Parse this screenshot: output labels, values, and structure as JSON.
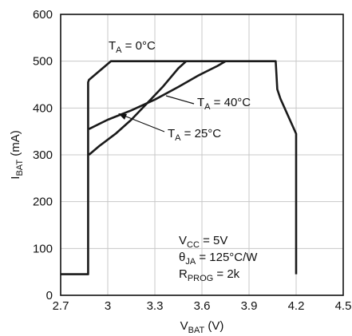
{
  "chart_data": {
    "type": "line",
    "title": "",
    "xlabel": {
      "main": "V",
      "sub": "BAT",
      "unit": " (V)"
    },
    "ylabel": {
      "main": "I",
      "sub": "BAT",
      "unit": " (mA)"
    },
    "xlim": [
      2.7,
      4.5
    ],
    "ylim": [
      0,
      600
    ],
    "x_ticks": [
      "2.7",
      "3",
      "3.3",
      "3.6",
      "3.9",
      "4.2",
      "4.5"
    ],
    "x_tick_values": [
      2.7,
      3.0,
      3.3,
      3.6,
      3.9,
      4.2,
      4.5
    ],
    "y_ticks": [
      "0",
      "100",
      "200",
      "300",
      "400",
      "500",
      "600"
    ],
    "y_tick_values": [
      0,
      100,
      200,
      300,
      400,
      500,
      600
    ],
    "grid": true,
    "curve_labels": [
      {
        "main": "T",
        "sub": "A",
        "rest": " = 0°C",
        "series": 0
      },
      {
        "main": "T",
        "sub": "A",
        "rest": " = 25°C",
        "series": 1
      },
      {
        "main": "T",
        "sub": "A",
        "rest": " = 40°C",
        "series": 2
      }
    ],
    "series": [
      {
        "color": "#1a1a1a",
        "x": [
          2.7,
          2.875,
          2.875,
          2.88,
          2.95,
          3.02,
          3.05,
          4.07,
          4.08,
          4.1,
          4.2,
          4.2
        ],
        "y": [
          45,
          45,
          455,
          460,
          480,
          500,
          500,
          500,
          440,
          420,
          345,
          45
        ]
      },
      {
        "color": "#1a1a1a",
        "x": [
          2.88,
          2.95,
          3.05,
          3.15,
          3.25,
          3.35,
          3.45,
          3.5
        ],
        "y": [
          300,
          320,
          345,
          375,
          410,
          445,
          485,
          500
        ]
      },
      {
        "color": "#1a1a1a",
        "x": [
          2.88,
          3.0,
          3.15,
          3.3,
          3.45,
          3.58,
          3.7,
          3.75
        ],
        "y": [
          355,
          375,
          395,
          418,
          445,
          470,
          490,
          500
        ]
      }
    ],
    "conditions": [
      {
        "main": "V",
        "sub": "CC",
        "rest": " = 5V"
      },
      {
        "main": "θ",
        "sub": "JA",
        "rest": " = 125°C/W"
      },
      {
        "main": "R",
        "sub": "PROG",
        "rest": " = 2k"
      }
    ]
  }
}
